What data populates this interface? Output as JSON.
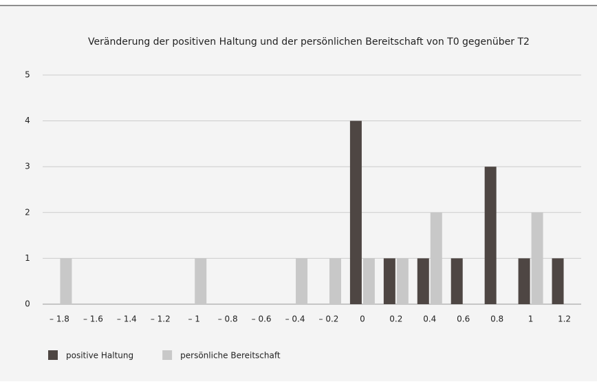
{
  "chart_data": {
    "type": "bar",
    "title": "Veränderung der positiven Haltung und der persönlichen Bereitschaft von T0 gegenüber T2",
    "categories": [
      "– 1.8",
      "– 1.6",
      "– 1.4",
      "– 1.2",
      "– 1",
      "– 0.8",
      "– 0.6",
      "– 0.4",
      "– 0.2",
      "0",
      "0.2",
      "0.4",
      "0.6",
      "0.8",
      "1",
      "1.2"
    ],
    "series": [
      {
        "name": "positive Haltung",
        "color": "#4e4643",
        "values": [
          0,
          0,
          0,
          0,
          0,
          0,
          0,
          0,
          0,
          4,
          1,
          1,
          1,
          3,
          1,
          1
        ]
      },
      {
        "name": "persönliche Bereitschaft",
        "color": "#c8c8c8",
        "values": [
          1,
          0,
          0,
          0,
          1,
          0,
          0,
          1,
          1,
          1,
          1,
          2,
          0,
          0,
          2,
          0
        ]
      }
    ],
    "ylim": [
      0,
      5
    ],
    "yticks": [
      0,
      1,
      2,
      3,
      4,
      5
    ],
    "grid": true,
    "legend": "bottom"
  }
}
